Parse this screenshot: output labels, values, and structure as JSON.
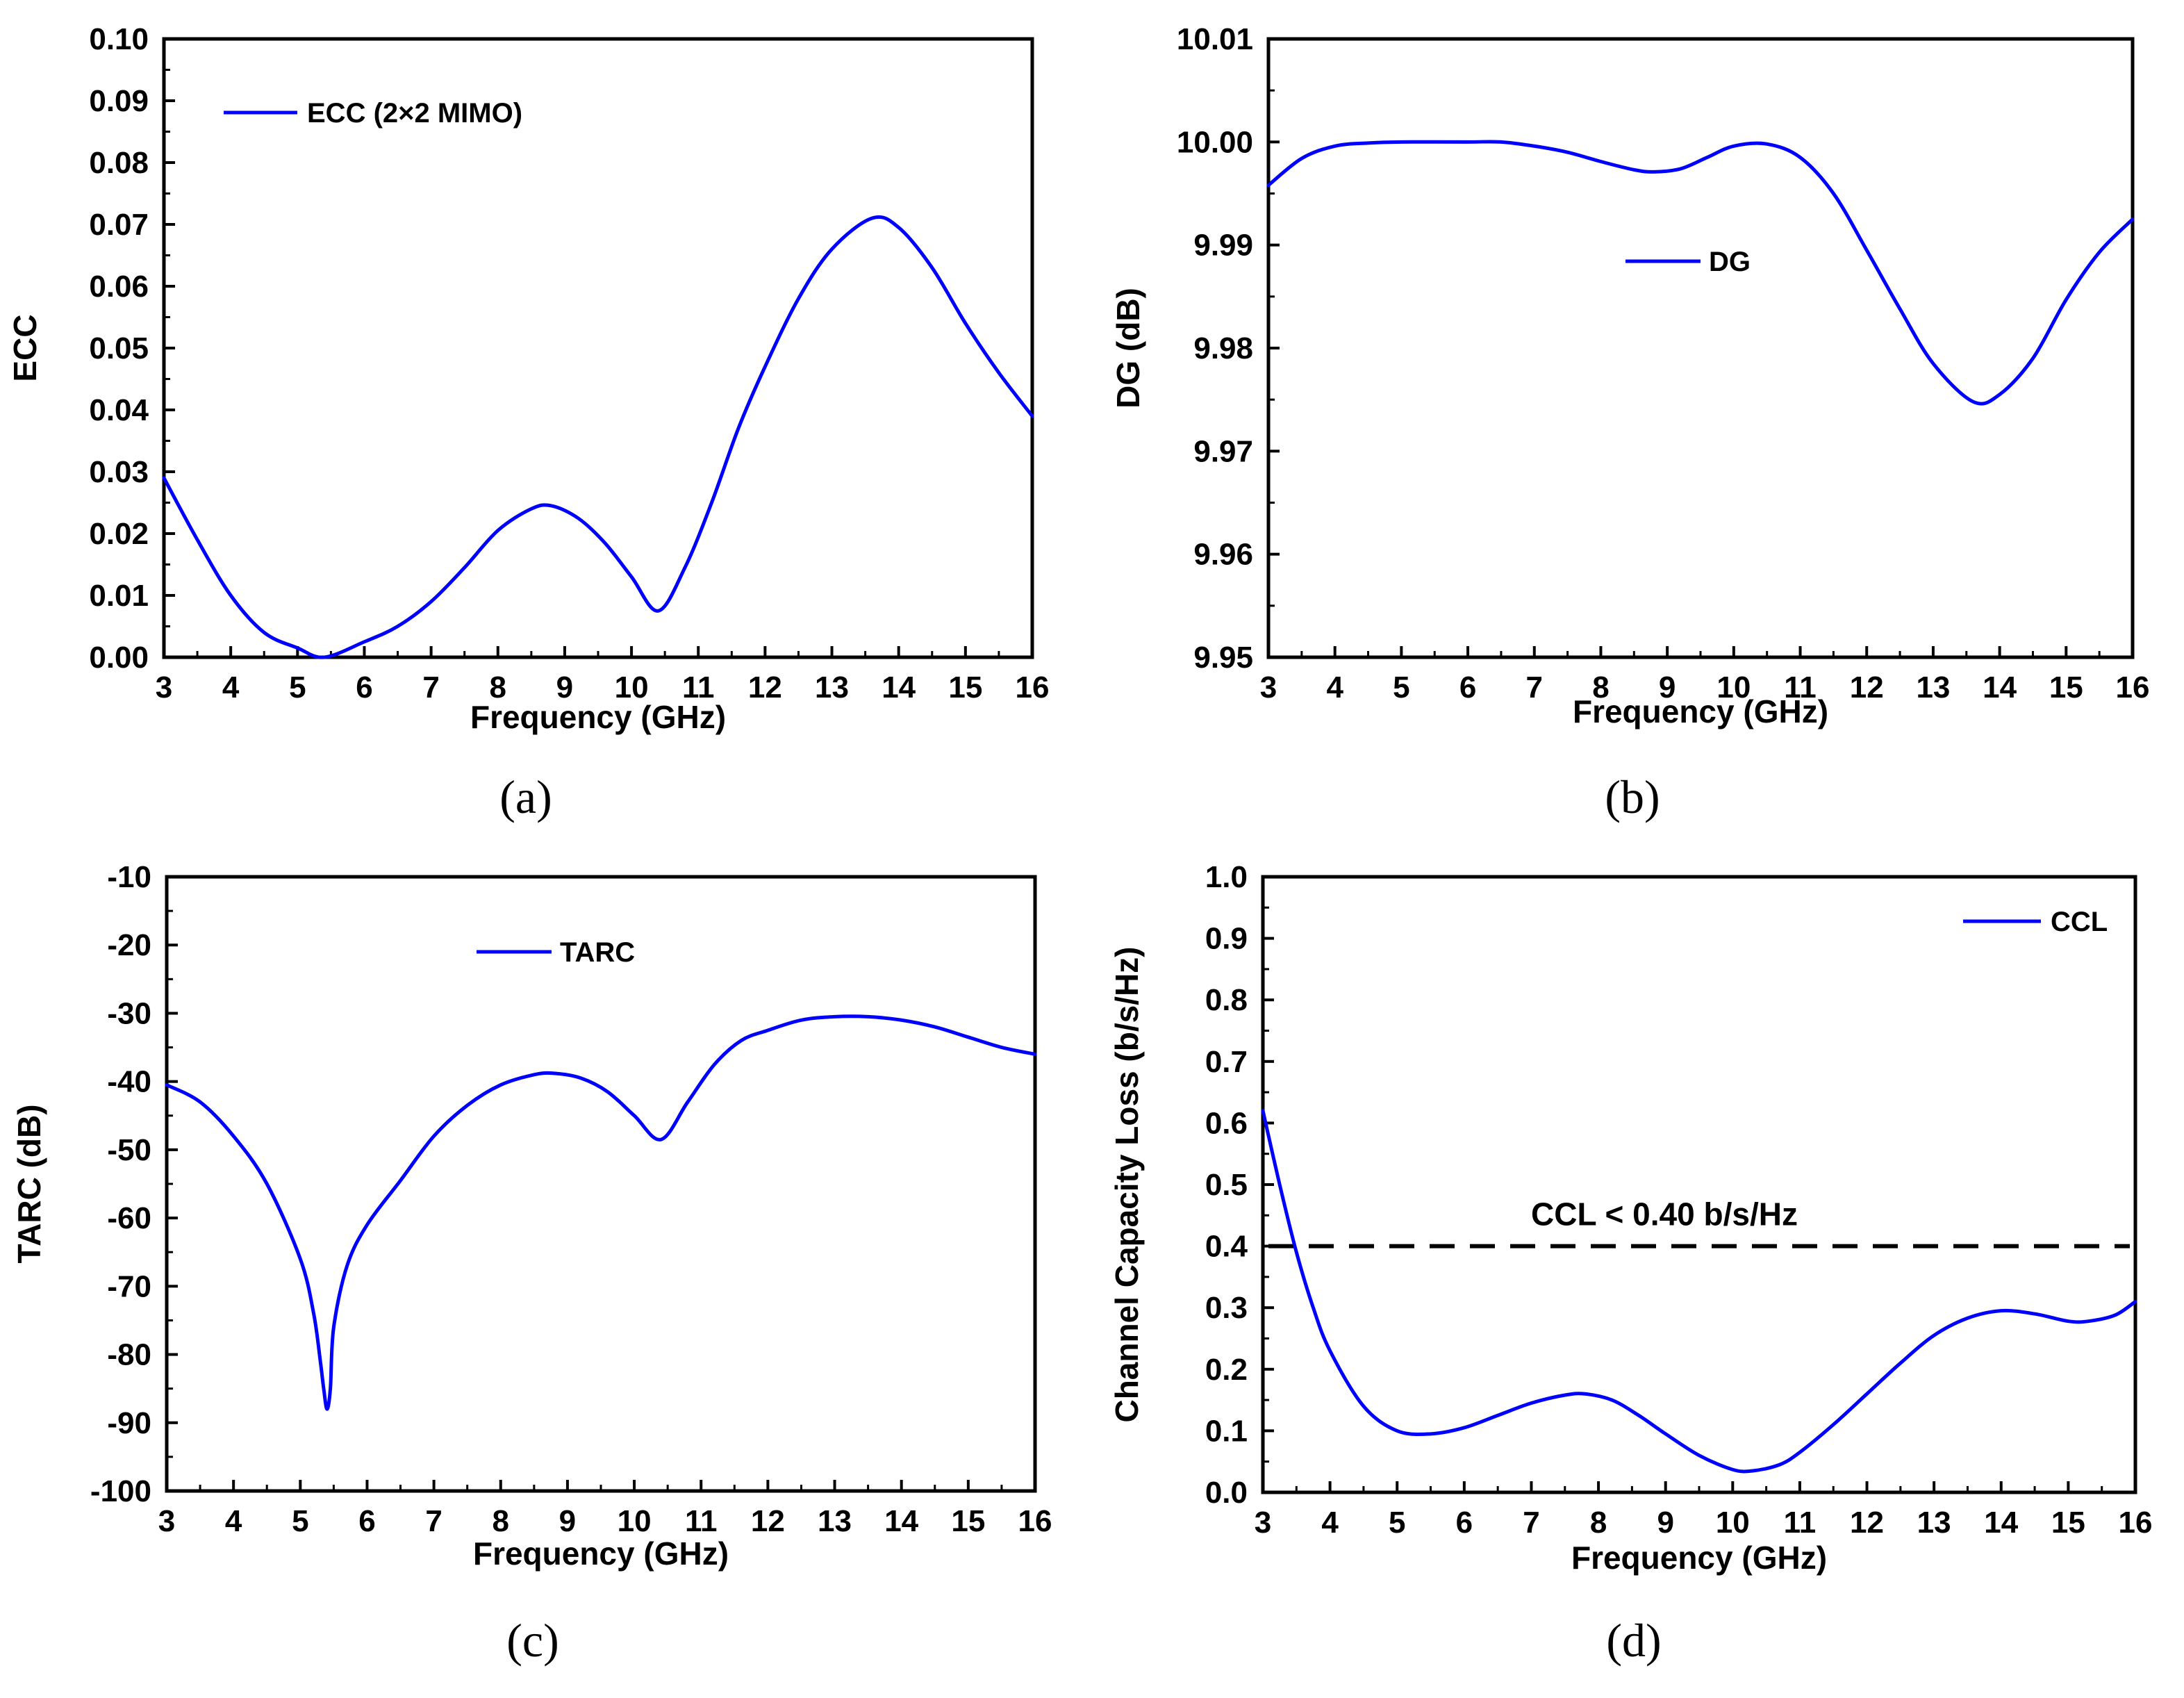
{
  "colors": {
    "series": "#0000ff",
    "axis": "#000000",
    "reference": "#000000"
  },
  "panel_labels": [
    "(a)",
    "(b)",
    "(c)",
    "(d)"
  ],
  "chart_data": [
    {
      "type": "line",
      "panel_label": "(a)",
      "title": "",
      "xlabel": "Frequency (GHz)",
      "ylabel": "ECC",
      "xlim": [
        3,
        16
      ],
      "ylim": [
        0,
        0.1
      ],
      "xticks": [
        "3",
        "4",
        "5",
        "6",
        "7",
        "8",
        "9",
        "10",
        "11",
        "12",
        "13",
        "14",
        "15",
        "16"
      ],
      "yticks": [
        "0.00",
        "0.01",
        "0.02",
        "0.03",
        "0.04",
        "0.05",
        "0.06",
        "0.07",
        "0.08",
        "0.09",
        "0.10"
      ],
      "ytick_values": [
        0,
        0.01,
        0.02,
        0.03,
        0.04,
        0.05,
        0.06,
        0.07,
        0.08,
        0.09,
        0.1
      ],
      "legend_position": "top-left",
      "series": [
        {
          "name": "ECC (2×2 MIMO)",
          "x": [
            3,
            3.5,
            4,
            4.5,
            5,
            5.4,
            6,
            6.5,
            7,
            7.5,
            8,
            8.5,
            8.8,
            9.2,
            9.6,
            10,
            10.4,
            10.8,
            11.2,
            11.6,
            12,
            12.5,
            13,
            13.6,
            14,
            14.5,
            15,
            15.5,
            16
          ],
          "y": [
            0.029,
            0.019,
            0.01,
            0.004,
            0.0015,
            0,
            0.0025,
            0.005,
            0.009,
            0.0145,
            0.0205,
            0.024,
            0.0245,
            0.0225,
            0.0185,
            0.013,
            0.0075,
            0.0145,
            0.025,
            0.037,
            0.047,
            0.058,
            0.066,
            0.071,
            0.0695,
            0.063,
            0.054,
            0.046,
            0.039
          ]
        }
      ]
    },
    {
      "type": "line",
      "panel_label": "(b)",
      "title": "",
      "xlabel": "Frequency (GHz)",
      "ylabel": "DG (dB)",
      "xlim": [
        3,
        16
      ],
      "ylim": [
        9.95,
        10.01
      ],
      "xticks": [
        "3",
        "4",
        "5",
        "6",
        "7",
        "8",
        "9",
        "10",
        "11",
        "12",
        "13",
        "14",
        "15",
        "16"
      ],
      "yticks": [
        "9.95",
        "9.96",
        "9.97",
        "9.98",
        "9.99",
        "10.00",
        "10.01"
      ],
      "ytick_values": [
        9.95,
        9.96,
        9.97,
        9.98,
        9.99,
        10.0,
        10.01
      ],
      "legend_position": "center",
      "series": [
        {
          "name": "DG",
          "x": [
            3,
            3.5,
            4,
            4.5,
            5,
            6,
            6.5,
            7,
            7.5,
            8,
            8.5,
            8.8,
            9.2,
            9.6,
            10,
            10.5,
            11,
            11.5,
            12,
            12.5,
            13,
            13.6,
            14,
            14.5,
            15,
            15.5,
            16
          ],
          "y": [
            9.9958,
            9.9984,
            9.9996,
            9.9999,
            10.0,
            10.0,
            10.0,
            9.9996,
            9.999,
            9.9981,
            9.9973,
            9.9971,
            9.9974,
            9.9985,
            9.9996,
            9.9998,
            9.9985,
            9.995,
            9.9895,
            9.9838,
            9.9785,
            9.9748,
            9.9755,
            9.979,
            9.9847,
            9.9893,
            9.9925
          ]
        }
      ]
    },
    {
      "type": "line",
      "panel_label": "(c)",
      "title": "",
      "xlabel": "Frequency (GHz)",
      "ylabel": "TARC (dB)",
      "xlim": [
        3,
        16
      ],
      "ylim": [
        -100,
        -10
      ],
      "xticks": [
        "3",
        "4",
        "5",
        "6",
        "7",
        "8",
        "9",
        "10",
        "11",
        "12",
        "13",
        "14",
        "15",
        "16"
      ],
      "yticks": [
        "-100",
        "-90",
        "-80",
        "-70",
        "-60",
        "-50",
        "-40",
        "-30",
        "-20",
        "-10"
      ],
      "ytick_values": [
        -100,
        -90,
        -80,
        -70,
        -60,
        -50,
        -40,
        -30,
        -20,
        -10
      ],
      "legend_position": "top-center",
      "series": [
        {
          "name": "TARC",
          "x": [
            3,
            3.5,
            4,
            4.5,
            5,
            5.2,
            5.3,
            5.35,
            5.4,
            5.45,
            5.5,
            5.7,
            6,
            6.5,
            7,
            7.5,
            8,
            8.5,
            8.8,
            9.2,
            9.6,
            10,
            10.4,
            10.8,
            11.2,
            11.6,
            12,
            12.5,
            13,
            13.5,
            14,
            14.5,
            15,
            15.5,
            16
          ],
          "y": [
            -40.5,
            -43,
            -48,
            -55,
            -66,
            -74,
            -81,
            -85,
            -88,
            -85,
            -76,
            -67,
            -61,
            -54.5,
            -48,
            -43.5,
            -40.5,
            -39,
            -38.8,
            -39.5,
            -41.5,
            -45,
            -48.5,
            -43,
            -37.5,
            -34,
            -32.5,
            -31,
            -30.5,
            -30.5,
            -31,
            -32,
            -33.5,
            -35,
            -36
          ]
        }
      ]
    },
    {
      "type": "line",
      "panel_label": "(d)",
      "title": "",
      "xlabel": "Frequency (GHz)",
      "ylabel": "Channel Capacity Loss (b/s/Hz)",
      "xlim": [
        3,
        16
      ],
      "ylim": [
        0,
        1.0
      ],
      "xticks": [
        "3",
        "4",
        "5",
        "6",
        "7",
        "8",
        "9",
        "10",
        "11",
        "12",
        "13",
        "14",
        "15",
        "16"
      ],
      "yticks": [
        "0.0",
        "0.1",
        "0.2",
        "0.3",
        "0.4",
        "0.5",
        "0.6",
        "0.7",
        "0.8",
        "0.9",
        "1.0"
      ],
      "ytick_values": [
        0,
        0.1,
        0.2,
        0.3,
        0.4,
        0.5,
        0.6,
        0.7,
        0.8,
        0.9,
        1.0
      ],
      "legend_position": "top-right",
      "reference_line": {
        "y": 0.4,
        "x_start": 3,
        "x_end": 16
      },
      "annotation": "CCL < 0.40 b/s/Hz",
      "series": [
        {
          "name": "CCL",
          "x": [
            3,
            3.25,
            3.5,
            3.75,
            4,
            4.5,
            5,
            5.5,
            6,
            6.5,
            7,
            7.5,
            7.8,
            8.2,
            8.6,
            9,
            9.5,
            10,
            10.3,
            10.7,
            11,
            11.5,
            12,
            12.5,
            13,
            13.5,
            14,
            14.5,
            15,
            15.3,
            15.7,
            16
          ],
          "y": [
            0.62,
            0.5,
            0.39,
            0.3,
            0.23,
            0.14,
            0.1,
            0.095,
            0.105,
            0.125,
            0.145,
            0.158,
            0.16,
            0.15,
            0.125,
            0.095,
            0.06,
            0.037,
            0.035,
            0.045,
            0.065,
            0.11,
            0.16,
            0.21,
            0.255,
            0.283,
            0.295,
            0.29,
            0.278,
            0.278,
            0.288,
            0.31
          ]
        }
      ]
    }
  ]
}
